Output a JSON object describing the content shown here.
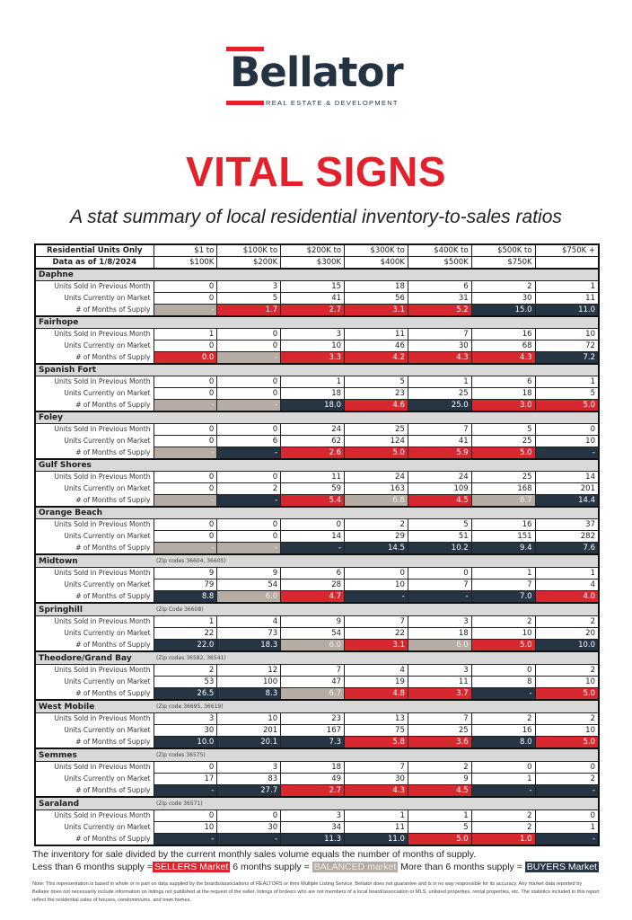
{
  "brand": {
    "name": "Bellator",
    "tagline": "REAL ESTATE & DEVELOPMENT"
  },
  "title": "VITAL SIGNS",
  "subtitle": "A stat summary of local residential inventory-to-sales ratios",
  "colors": {
    "sellers": "#d7282f",
    "balanced": "#b5aca3",
    "buyers": "#253544"
  },
  "table": {
    "header_label": "Residential Units Only",
    "data_as_of": "Data as of 1/8/2024",
    "columns": [
      [
        "$1 to",
        "$100K"
      ],
      [
        "$100K to",
        "$200K"
      ],
      [
        "$200K to",
        "$300K"
      ],
      [
        "$300K to",
        "$400K"
      ],
      [
        "$400K to",
        "$500K"
      ],
      [
        "$500K to",
        "$750K"
      ],
      [
        "$750K +",
        ""
      ]
    ],
    "row_labels": [
      "Units Sold in Previous Month",
      "Units Currently on Market",
      "# of Months of Supply"
    ],
    "regions": [
      {
        "name": "Daphne",
        "zip": "",
        "sold": [
          "0",
          "3",
          "15",
          "18",
          "6",
          "2",
          "1"
        ],
        "market": [
          "0",
          "5",
          "41",
          "56",
          "31",
          "30",
          "11"
        ],
        "supply": [
          "-",
          "1.7",
          "2.7",
          "3.1",
          "5.2",
          "15.0",
          "11.0"
        ],
        "status": [
          "balanced",
          "sellers",
          "sellers",
          "sellers",
          "sellers",
          "buyers",
          "buyers"
        ]
      },
      {
        "name": "Fairhope",
        "zip": "",
        "sold": [
          "1",
          "0",
          "3",
          "11",
          "7",
          "16",
          "10"
        ],
        "market": [
          "0",
          "0",
          "10",
          "46",
          "30",
          "68",
          "72"
        ],
        "supply": [
          "0.0",
          "-",
          "3.3",
          "4.2",
          "4.3",
          "4.3",
          "7.2"
        ],
        "status": [
          "sellers",
          "balanced",
          "sellers",
          "sellers",
          "sellers",
          "sellers",
          "buyers"
        ]
      },
      {
        "name": "Spanish Fort",
        "zip": "",
        "sold": [
          "0",
          "0",
          "1",
          "5",
          "1",
          "6",
          "1"
        ],
        "market": [
          "0",
          "0",
          "18",
          "23",
          "25",
          "18",
          "5"
        ],
        "supply": [
          "-",
          "-",
          "18.0",
          "4.6",
          "25.0",
          "3.0",
          "5.0"
        ],
        "status": [
          "balanced",
          "balanced",
          "buyers",
          "sellers",
          "buyers",
          "sellers",
          "sellers"
        ]
      },
      {
        "name": "Foley",
        "zip": "",
        "sold": [
          "0",
          "0",
          "24",
          "25",
          "7",
          "5",
          "0"
        ],
        "market": [
          "0",
          "6",
          "62",
          "124",
          "41",
          "25",
          "10"
        ],
        "supply": [
          "-",
          "-",
          "2.6",
          "5.0",
          "5.9",
          "5.0",
          "-"
        ],
        "status": [
          "balanced",
          "buyers",
          "sellers",
          "sellers",
          "sellers",
          "sellers",
          "buyers"
        ]
      },
      {
        "name": "Gulf Shores",
        "zip": "",
        "sold": [
          "0",
          "0",
          "11",
          "24",
          "24",
          "25",
          "14"
        ],
        "market": [
          "0",
          "2",
          "59",
          "163",
          "109",
          "168",
          "201"
        ],
        "supply": [
          "-",
          "-",
          "5.4",
          "6.8",
          "4.5",
          "6.7",
          "14.4"
        ],
        "status": [
          "balanced",
          "buyers",
          "sellers",
          "balanced",
          "sellers",
          "balanced",
          "buyers"
        ]
      },
      {
        "name": "Orange Beach",
        "zip": "",
        "sold": [
          "0",
          "0",
          "0",
          "2",
          "5",
          "16",
          "37"
        ],
        "market": [
          "0",
          "0",
          "14",
          "29",
          "51",
          "151",
          "282"
        ],
        "supply": [
          "-",
          "-",
          "-",
          "14.5",
          "10.2",
          "9.4",
          "7.6"
        ],
        "status": [
          "balanced",
          "balanced",
          "buyers",
          "buyers",
          "buyers",
          "buyers",
          "buyers"
        ]
      },
      {
        "name": "Midtown",
        "zip": "(Zip codes 36604, 36605)",
        "sold": [
          "9",
          "9",
          "6",
          "0",
          "0",
          "1",
          "1"
        ],
        "market": [
          "79",
          "54",
          "28",
          "10",
          "7",
          "7",
          "4"
        ],
        "supply": [
          "8.8",
          "6.0",
          "4.7",
          "-",
          "-",
          "7.0",
          "4.0"
        ],
        "status": [
          "buyers",
          "balanced",
          "sellers",
          "buyers",
          "buyers",
          "buyers",
          "sellers"
        ]
      },
      {
        "name": "Springhill",
        "zip": "(Zip Code 36608)",
        "sold": [
          "1",
          "4",
          "9",
          "7",
          "3",
          "2",
          "2"
        ],
        "market": [
          "22",
          "73",
          "54",
          "22",
          "18",
          "10",
          "20"
        ],
        "supply": [
          "22.0",
          "18.3",
          "6.0",
          "3.1",
          "6.0",
          "5.0",
          "10.0"
        ],
        "status": [
          "buyers",
          "buyers",
          "balanced",
          "sellers",
          "balanced",
          "sellers",
          "buyers"
        ]
      },
      {
        "name": "Theodore/Grand Bay",
        "zip": "(Zip codes 36582, 36541)",
        "sold": [
          "2",
          "12",
          "7",
          "4",
          "3",
          "0",
          "2"
        ],
        "market": [
          "53",
          "100",
          "47",
          "19",
          "11",
          "8",
          "10"
        ],
        "supply": [
          "26.5",
          "8.3",
          "6.7",
          "4.8",
          "3.7",
          "-",
          "5.0"
        ],
        "status": [
          "buyers",
          "buyers",
          "balanced",
          "sellers",
          "sellers",
          "buyers",
          "sellers"
        ]
      },
      {
        "name": "West Mobile",
        "zip": "(Zip code 36695, 36619)",
        "sold": [
          "3",
          "10",
          "23",
          "13",
          "7",
          "2",
          "2"
        ],
        "market": [
          "30",
          "201",
          "167",
          "75",
          "25",
          "16",
          "10"
        ],
        "supply": [
          "10.0",
          "20.1",
          "7.3",
          "5.8",
          "3.6",
          "8.0",
          "5.0"
        ],
        "status": [
          "buyers",
          "buyers",
          "buyers",
          "sellers",
          "sellers",
          "buyers",
          "sellers"
        ]
      },
      {
        "name": "Semmes",
        "zip": "(Zip codes 36575)",
        "sold": [
          "0",
          "3",
          "18",
          "7",
          "2",
          "0",
          "0"
        ],
        "market": [
          "17",
          "83",
          "49",
          "30",
          "9",
          "1",
          "2"
        ],
        "supply": [
          "-",
          "27.7",
          "2.7",
          "4.3",
          "4.5",
          "-",
          "-"
        ],
        "status": [
          "buyers",
          "buyers",
          "sellers",
          "sellers",
          "sellers",
          "buyers",
          "buyers"
        ]
      },
      {
        "name": "Saraland",
        "zip": "(Zip code 36571)",
        "sold": [
          "0",
          "0",
          "3",
          "1",
          "1",
          "2",
          "0"
        ],
        "market": [
          "10",
          "30",
          "34",
          "11",
          "5",
          "2",
          "1"
        ],
        "supply": [
          "-",
          "-",
          "11.3",
          "11.0",
          "5.0",
          "1.0",
          "-"
        ],
        "status": [
          "buyers",
          "buyers",
          "buyers",
          "buyers",
          "sellers",
          "sellers",
          "buyers"
        ]
      }
    ]
  },
  "legend": {
    "line1": "The inventory for sale divided by the current monthly sales volume equals the number of months of supply.",
    "less_text": "Less than 6 months supply =",
    "sellers": "SELLERS Market",
    "six_text": "6 months supply =",
    "balanced": "BALANCED market",
    "more_text": "More than 6 months supply =",
    "buyers": "BUYERS Market"
  },
  "note": "Note: This representation is based in whole or in part on data supplied by the boards/associations of REALTORS or their Multiple Listing Service. Bellator does not guarantee and is in no way responsible for its accuracy. Any market data reported by Bellator does not necessarily include information on listings not published at the request of the seller, listings of brokers who are not members of a local board/association or MLS, unlisted properties, rental properties, etc. The statistics included in this report reflect the residential sales of houses, condominiums, and town homes."
}
